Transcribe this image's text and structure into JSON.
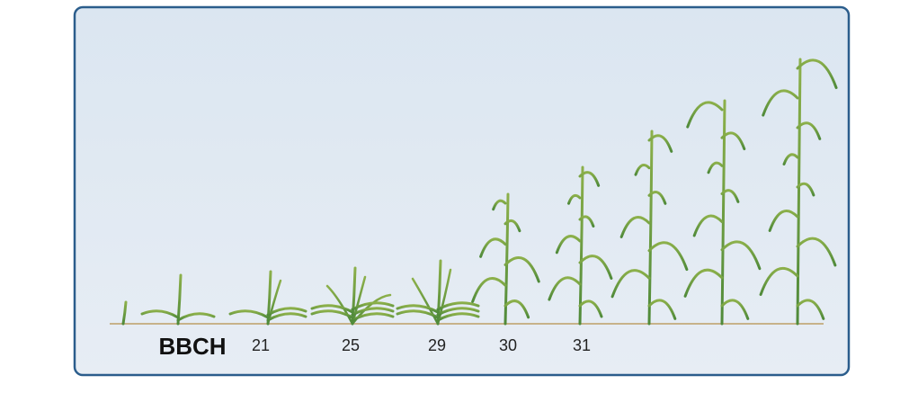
{
  "diagram": {
    "scale_label": "BBCH",
    "stages": [
      "21",
      "25",
      "29",
      "30",
      "31"
    ]
  }
}
